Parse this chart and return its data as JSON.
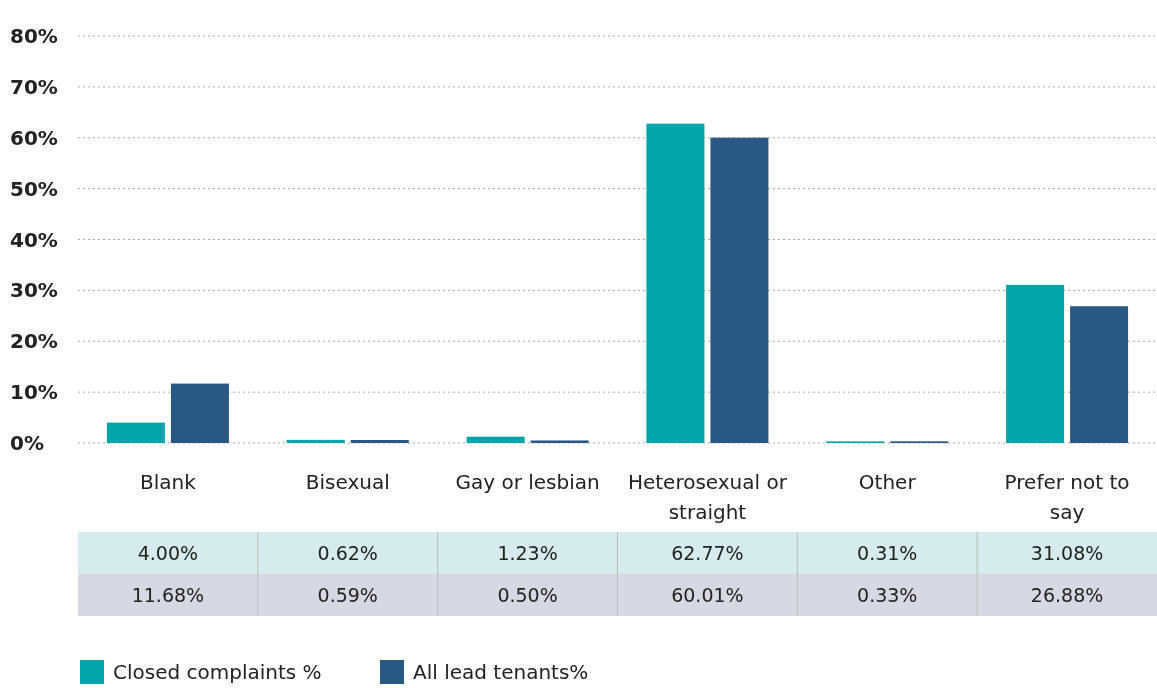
{
  "chart_data": {
    "type": "bar",
    "categories": [
      "Blank",
      "Bisexual",
      "Gay or lesbian",
      "Heterosexual or straight",
      "Other",
      "Prefer not to say"
    ],
    "series": [
      {
        "name": "Closed complaints %",
        "color": "#00a4a9",
        "values": [
          4.0,
          0.62,
          1.23,
          62.77,
          0.31,
          31.08
        ],
        "value_labels": [
          "4.00%",
          "0.62%",
          "1.23%",
          "62.77%",
          "0.31%",
          "31.08%"
        ]
      },
      {
        "name": "All lead tenants%",
        "color": "#2a5885",
        "values": [
          11.68,
          0.59,
          0.5,
          60.01,
          0.33,
          26.88
        ],
        "value_labels": [
          "11.68%",
          "0.59%",
          "0.50%",
          "60.01%",
          "0.33%",
          "26.88%"
        ]
      }
    ],
    "ylim": [
      0,
      80
    ],
    "yticks": [
      {
        "value": 0,
        "label": "0%"
      },
      {
        "value": 10,
        "label": "10%"
      },
      {
        "value": 20,
        "label": "20%"
      },
      {
        "value": 30,
        "label": "30%"
      },
      {
        "value": 40,
        "label": "40%"
      },
      {
        "value": 50,
        "label": "50%"
      },
      {
        "value": 60,
        "label": "60%"
      },
      {
        "value": 70,
        "label": "70%"
      },
      {
        "value": 80,
        "label": "80%"
      }
    ],
    "grid": "y",
    "legend": "bottom"
  }
}
